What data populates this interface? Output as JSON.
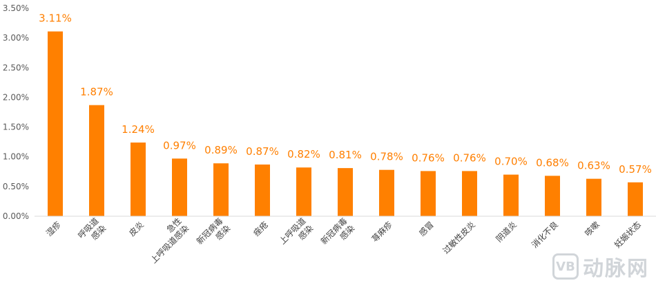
{
  "chart_data": {
    "type": "bar",
    "categories": [
      "湿疹",
      "呼吸道\n感染",
      "皮炎",
      "急性\n上呼吸道感染",
      "新冠病毒\n感染",
      "痤疮",
      "上呼吸道\n感染",
      "新冠病毒\n感染",
      "荨麻疹",
      "感冒",
      "过敏性皮炎",
      "阴道炎",
      "消化不良",
      "咳嗽",
      "妊娠状态"
    ],
    "values": [
      3.11,
      1.87,
      1.24,
      0.97,
      0.89,
      0.87,
      0.82,
      0.81,
      0.78,
      0.76,
      0.76,
      0.7,
      0.68,
      0.63,
      0.57
    ],
    "data_labels": [
      "3.11%",
      "1.87%",
      "1.24%",
      "0.97%",
      "0.89%",
      "0.87%",
      "0.82%",
      "0.81%",
      "0.78%",
      "0.76%",
      "0.76%",
      "0.70%",
      "0.68%",
      "0.63%",
      "0.57%"
    ],
    "yticks": [
      "0.00%",
      "0.50%",
      "1.00%",
      "1.50%",
      "2.00%",
      "2.50%",
      "3.00%",
      "3.50%"
    ],
    "ylim": [
      0,
      3.5
    ],
    "title": "",
    "xlabel": "",
    "ylabel": "",
    "bar_color": "#ff8000",
    "label_color": "#ff7f00",
    "grid": false
  },
  "watermark": {
    "logo": "VB",
    "text": "动脉网"
  }
}
